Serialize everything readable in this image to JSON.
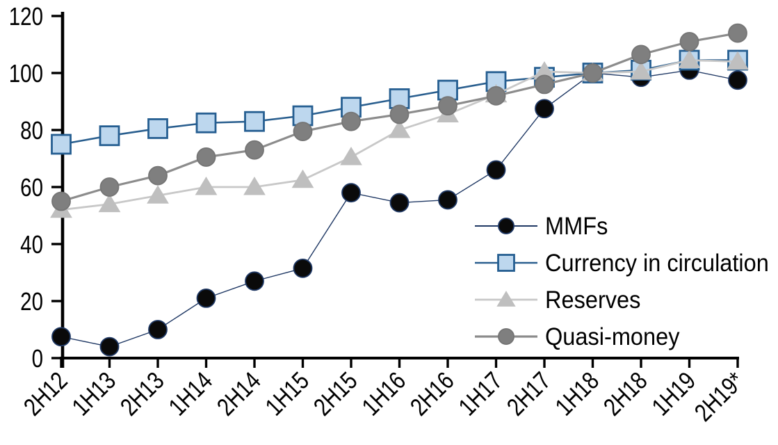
{
  "chart_data": {
    "type": "line",
    "title": "",
    "xlabel": "",
    "ylabel": "",
    "grid": false,
    "legend_position": "center-right",
    "axis_color": "#000000",
    "background_color": "#ffffff",
    "ylim": [
      0,
      120
    ],
    "yticks": [
      "0",
      "20",
      "40",
      "60",
      "80",
      "100",
      "120"
    ],
    "categories": [
      "2H12",
      "1H13",
      "2H13",
      "1H14",
      "2H14",
      "1H15",
      "2H15",
      "1H16",
      "2H16",
      "1H17",
      "2H17",
      "1H18",
      "2H18",
      "1H19",
      "2H19*"
    ],
    "series": [
      {
        "name": "MMFs",
        "marker": "circle",
        "line_color": "#1f3864",
        "marker_fill": "#0a0a0a",
        "marker_stroke": "#1f3864",
        "line_width": 1.4,
        "values": [
          7.5,
          4,
          10,
          21,
          27,
          31.5,
          58,
          54.5,
          55.5,
          66,
          87.5,
          100,
          98.5,
          101,
          97.5
        ]
      },
      {
        "name": "Currency in circulation",
        "marker": "square",
        "line_color": "#2a5f8f",
        "marker_fill": "#bdd7ee",
        "marker_stroke": "#255e91",
        "line_width": 2.6,
        "values": [
          75,
          78,
          80.5,
          82.5,
          83,
          85,
          88,
          91,
          94,
          97,
          98.5,
          100,
          101,
          104.5,
          104.5
        ]
      },
      {
        "name": "Reserves",
        "marker": "triangle",
        "line_color": "#c8c8c8",
        "marker_fill": "#bfbfbf",
        "marker_stroke": "#bfbfbf",
        "line_width": 2.8,
        "values": [
          52,
          54,
          57,
          60,
          60,
          62.5,
          70.5,
          80,
          85.5,
          92.5,
          100.5,
          100,
          100.5,
          104.5,
          104
        ]
      },
      {
        "name": "Quasi-money",
        "marker": "circle",
        "line_color": "#8c8c8c",
        "marker_fill": "#7f7f7f",
        "marker_stroke": "#757575",
        "line_width": 3.2,
        "values": [
          55,
          60,
          64,
          70.5,
          73,
          79.5,
          83,
          85.5,
          88.5,
          92,
          96,
          100,
          106.5,
          111,
          114
        ]
      }
    ]
  }
}
